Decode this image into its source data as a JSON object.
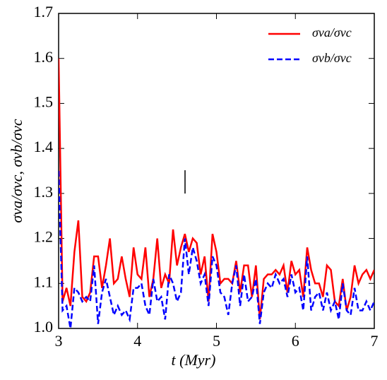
{
  "chart_data": {
    "type": "line",
    "xlabel": "t (Myr)",
    "ylabel": "σva/σvc, σvb/σvc",
    "x": [
      3.0,
      3.05,
      3.1,
      3.15,
      3.2,
      3.25,
      3.3,
      3.35,
      3.4,
      3.45,
      3.5,
      3.55,
      3.6,
      3.65,
      3.7,
      3.75,
      3.8,
      3.85,
      3.9,
      3.95,
      4.0,
      4.05,
      4.1,
      4.15,
      4.2,
      4.25,
      4.3,
      4.35,
      4.4,
      4.45,
      4.5,
      4.55,
      4.6,
      4.65,
      4.7,
      4.75,
      4.8,
      4.85,
      4.9,
      4.95,
      5.0,
      5.05,
      5.1,
      5.15,
      5.2,
      5.25,
      5.3,
      5.35,
      5.4,
      5.45,
      5.5,
      5.55,
      5.6,
      5.65,
      5.7,
      5.75,
      5.8,
      5.85,
      5.9,
      5.95,
      6.0,
      6.05,
      6.1,
      6.15,
      6.2,
      6.25,
      6.3,
      6.35,
      6.4,
      6.45,
      6.5,
      6.55,
      6.6,
      6.65,
      6.7,
      6.75,
      6.8,
      6.85,
      6.9,
      6.95,
      7.0
    ],
    "series": [
      {
        "name": "σva/σvc",
        "color": "#ff0000",
        "dash": "solid",
        "values": [
          1.6,
          1.06,
          1.09,
          1.05,
          1.17,
          1.24,
          1.07,
          1.06,
          1.08,
          1.16,
          1.16,
          1.09,
          1.14,
          1.2,
          1.1,
          1.11,
          1.16,
          1.11,
          1.07,
          1.18,
          1.12,
          1.11,
          1.18,
          1.07,
          1.11,
          1.2,
          1.09,
          1.12,
          1.1,
          1.22,
          1.14,
          1.18,
          1.21,
          1.17,
          1.2,
          1.19,
          1.12,
          1.16,
          1.06,
          1.21,
          1.17,
          1.1,
          1.11,
          1.11,
          1.1,
          1.15,
          1.08,
          1.14,
          1.14,
          1.07,
          1.14,
          1.02,
          1.11,
          1.12,
          1.12,
          1.13,
          1.12,
          1.14,
          1.08,
          1.15,
          1.12,
          1.13,
          1.07,
          1.18,
          1.13,
          1.1,
          1.1,
          1.07,
          1.14,
          1.13,
          1.06,
          1.05,
          1.11,
          1.04,
          1.07,
          1.14,
          1.1,
          1.12,
          1.13,
          1.11,
          1.13
        ]
      },
      {
        "name": "σvb/σvc",
        "color": "#0000ff",
        "dash": "dashed",
        "values": [
          1.35,
          1.04,
          1.05,
          1.0,
          1.09,
          1.08,
          1.06,
          1.07,
          1.06,
          1.14,
          1.01,
          1.08,
          1.11,
          1.07,
          1.03,
          1.05,
          1.03,
          1.04,
          1.02,
          1.09,
          1.09,
          1.1,
          1.05,
          1.03,
          1.11,
          1.06,
          1.07,
          1.02,
          1.12,
          1.1,
          1.06,
          1.08,
          1.2,
          1.12,
          1.18,
          1.15,
          1.1,
          1.12,
          1.05,
          1.16,
          1.14,
          1.08,
          1.07,
          1.03,
          1.1,
          1.14,
          1.05,
          1.12,
          1.06,
          1.07,
          1.11,
          1.01,
          1.08,
          1.1,
          1.09,
          1.12,
          1.1,
          1.11,
          1.07,
          1.12,
          1.08,
          1.09,
          1.04,
          1.16,
          1.04,
          1.07,
          1.08,
          1.04,
          1.08,
          1.04,
          1.06,
          1.02,
          1.1,
          1.04,
          1.03,
          1.09,
          1.04,
          1.04,
          1.06,
          1.04,
          1.06
        ]
      }
    ],
    "xlim": [
      3,
      7
    ],
    "xticks": [
      3,
      4,
      5,
      6,
      7
    ],
    "ylim": [
      1,
      1.7
    ],
    "yticks": [
      {
        "value": 1,
        "label": "1.0"
      },
      1.1,
      1.2,
      1.3,
      1.4,
      1.5,
      1.6,
      1.7
    ],
    "legend": "upper right",
    "grid": false
  }
}
